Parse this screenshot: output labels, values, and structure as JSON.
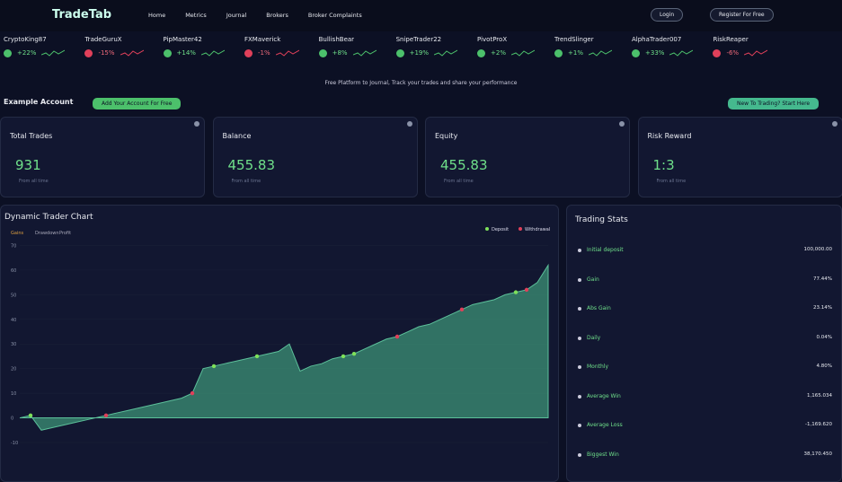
{
  "nav": {
    "logo": "TradeTab",
    "links": [
      "Home",
      "Metrics",
      "Journal",
      "Brokers",
      "Broker Complaints"
    ],
    "login": "Login",
    "register": "Register For Free"
  },
  "ticker": [
    {
      "name": "CryptoKing87",
      "change": "+22%"
    },
    {
      "name": "TradeGuruX",
      "change": "-15%"
    },
    {
      "name": "PipMaster42",
      "change": "+14%"
    },
    {
      "name": "FXMaverick",
      "change": "-1%"
    },
    {
      "name": "BullishBear",
      "change": "+8%"
    },
    {
      "name": "SnipeTrader22",
      "change": "+19%"
    },
    {
      "name": "PivotProX",
      "change": "+2%"
    },
    {
      "name": "TrendSlinger",
      "change": "+1%"
    },
    {
      "name": "AlphaTrader007",
      "change": "+33%"
    },
    {
      "name": "RiskReaper",
      "change": "-6%"
    }
  ],
  "tagline": "Free Platform to Journal, Track your trades and share your performance",
  "account": {
    "title": "Example Account",
    "add_button": "Add Your Account For Free",
    "start_button": "New To Trading? Start Here"
  },
  "cards": [
    {
      "label": "Total Trades",
      "value": "931",
      "note": "From all time"
    },
    {
      "label": "Balance",
      "value": "455.83",
      "note": "From all time"
    },
    {
      "label": "Equity",
      "value": "455.83",
      "note": "From all time"
    },
    {
      "label": "Risk Reward",
      "value": "1:3",
      "note": "From all time"
    }
  ],
  "chart_data": {
    "type": "area",
    "title": "Dynamic Trader Chart",
    "tabs": [
      "Gains",
      "Drawdown",
      "Profit"
    ],
    "color": "#3f9a7a",
    "categories": [
      null,
      null,
      null,
      null,
      null,
      null,
      null,
      null,
      null,
      null,
      null,
      null,
      null,
      null,
      null,
      null,
      null,
      null,
      null,
      null,
      null,
      null,
      null,
      null,
      null,
      null,
      null,
      null,
      null,
      null,
      null,
      null,
      null,
      null,
      null,
      null,
      null,
      null,
      null,
      null,
      null,
      null,
      null,
      null,
      null,
      null,
      null,
      null,
      null,
      null
    ],
    "values": [
      0,
      1,
      -5,
      -4,
      -3,
      -2,
      -1,
      0,
      1,
      2,
      3,
      4,
      5,
      6,
      7,
      8,
      10,
      20,
      21,
      22,
      23,
      24,
      25,
      26,
      27,
      30,
      19,
      21,
      22,
      24,
      25,
      26,
      28,
      30,
      32,
      33,
      35,
      37,
      38,
      40,
      42,
      44,
      46,
      47,
      48,
      50,
      51,
      52,
      55,
      62
    ],
    "series": [
      {
        "name": "Deposit",
        "color": "#7ee05a",
        "x": [
          1,
          18,
          22,
          30,
          31,
          46
        ],
        "values": [
          1,
          21,
          25,
          25,
          26,
          51
        ]
      },
      {
        "name": "Withdrawal",
        "color": "#e0405a",
        "x": [
          8,
          16,
          35,
          41,
          47
        ],
        "values": [
          1,
          10,
          33,
          44,
          52
        ]
      }
    ],
    "ylim": [
      -10,
      72
    ],
    "yticks": [
      -10,
      0,
      10,
      20,
      30,
      40,
      50,
      60,
      70
    ],
    "grid": true
  },
  "stats": {
    "title": "Trading Stats",
    "rows": [
      [
        "Initial deposit",
        "100,000.00"
      ],
      [
        "Gain",
        "77.44%"
      ],
      [
        "Abs Gain",
        "23.14%"
      ],
      [
        "Daily",
        "0.04%"
      ],
      [
        "Monthly",
        "4.80%"
      ],
      [
        "Average Win",
        "1,165.034"
      ],
      [
        "Average Loss",
        "-1,169.620"
      ],
      [
        "Biggest Win",
        "38,170.450"
      ]
    ]
  }
}
